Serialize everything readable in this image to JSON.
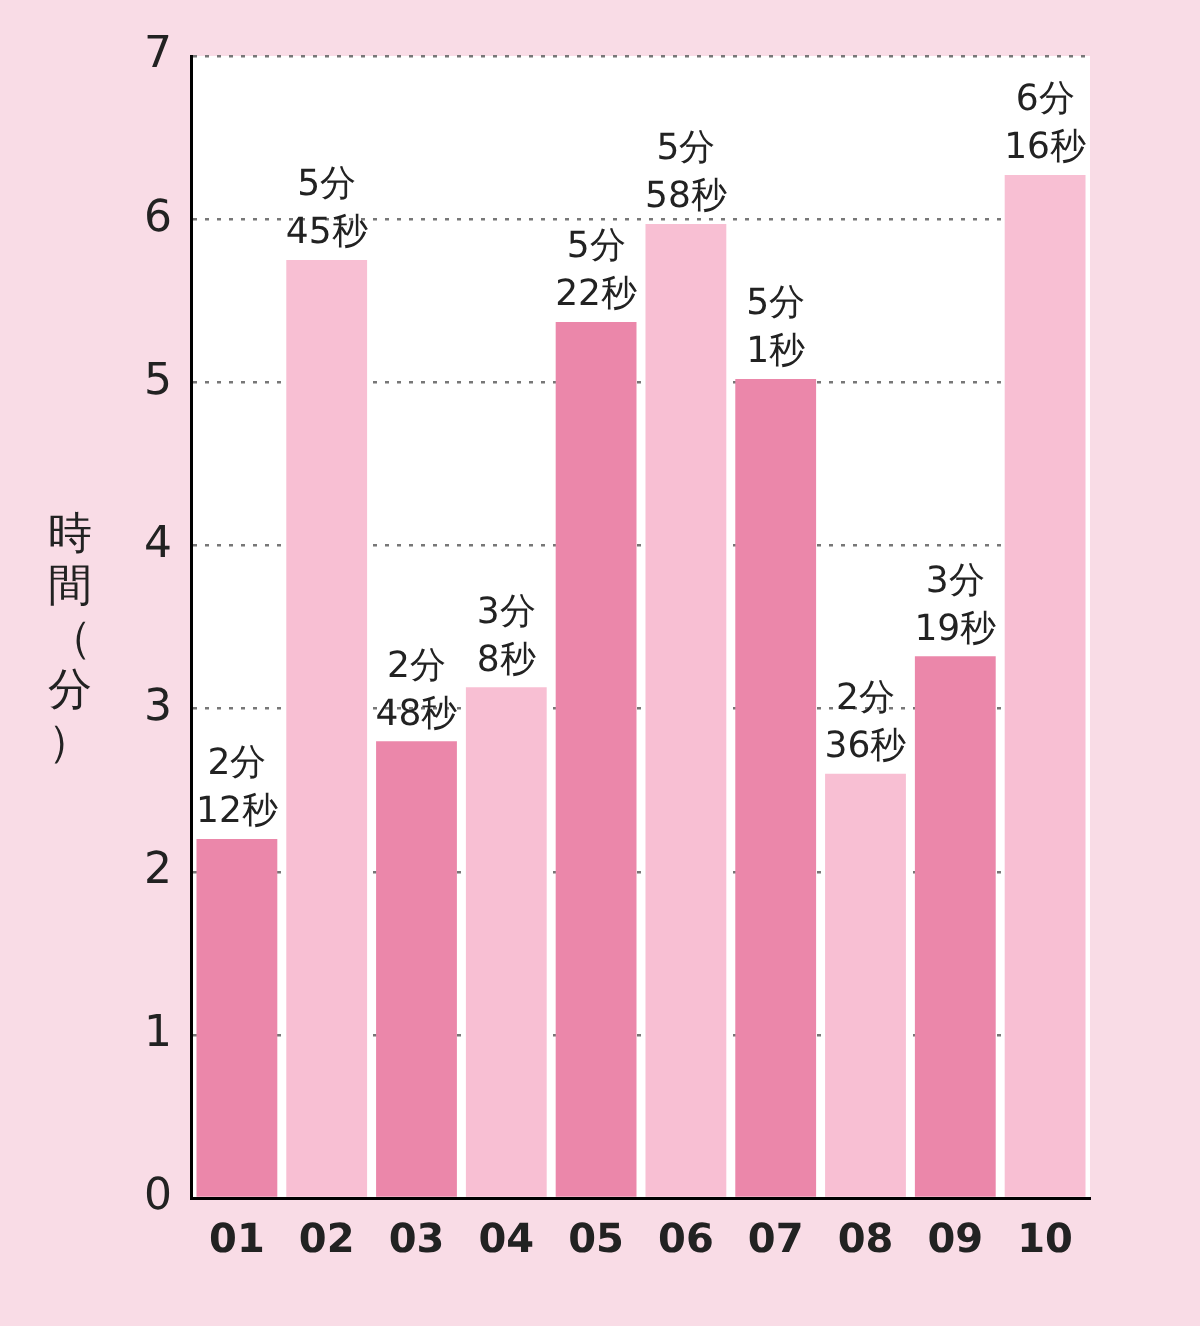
{
  "chart_data": {
    "type": "bar",
    "ylabel": "時間（分）",
    "categories": [
      "01",
      "02",
      "03",
      "04",
      "05",
      "06",
      "07",
      "08",
      "09",
      "10"
    ],
    "values": [
      2.2,
      5.75,
      2.8,
      3.13,
      5.37,
      5.97,
      5.02,
      2.6,
      3.32,
      6.27
    ],
    "colors": [
      "#eb87aa",
      "#f8bfd3",
      "#eb87aa",
      "#f8bfd3",
      "#eb87aa",
      "#f8bfd3",
      "#eb87aa",
      "#f8bfd3",
      "#eb87aa",
      "#f8bfd3"
    ],
    "annotations": [
      {
        "text": "2分\n12秒",
        "x": "01",
        "y": 2.2
      },
      {
        "text": "5分\n45秒",
        "x": "02",
        "y": 5.75
      },
      {
        "text": "2分\n48秒",
        "x": "03",
        "y": 2.8
      },
      {
        "text": "3分\n8秒",
        "x": "04",
        "y": 3.13
      },
      {
        "text": "5分\n22秒",
        "x": "05",
        "y": 5.37
      },
      {
        "text": "5分\n58秒",
        "x": "06",
        "y": 5.97
      },
      {
        "text": "5分\n1秒",
        "x": "07",
        "y": 5.02
      },
      {
        "text": "2分\n36秒",
        "x": "08",
        "y": 2.6
      },
      {
        "text": "3分\n19秒",
        "x": "09",
        "y": 3.32
      },
      {
        "text": "6分\n16秒",
        "x": "10",
        "y": 6.27
      }
    ],
    "ylim": [
      0,
      7
    ],
    "yticks": [
      0,
      1,
      2,
      3,
      4,
      5,
      6,
      7
    ],
    "grid": "y",
    "legend": false
  }
}
